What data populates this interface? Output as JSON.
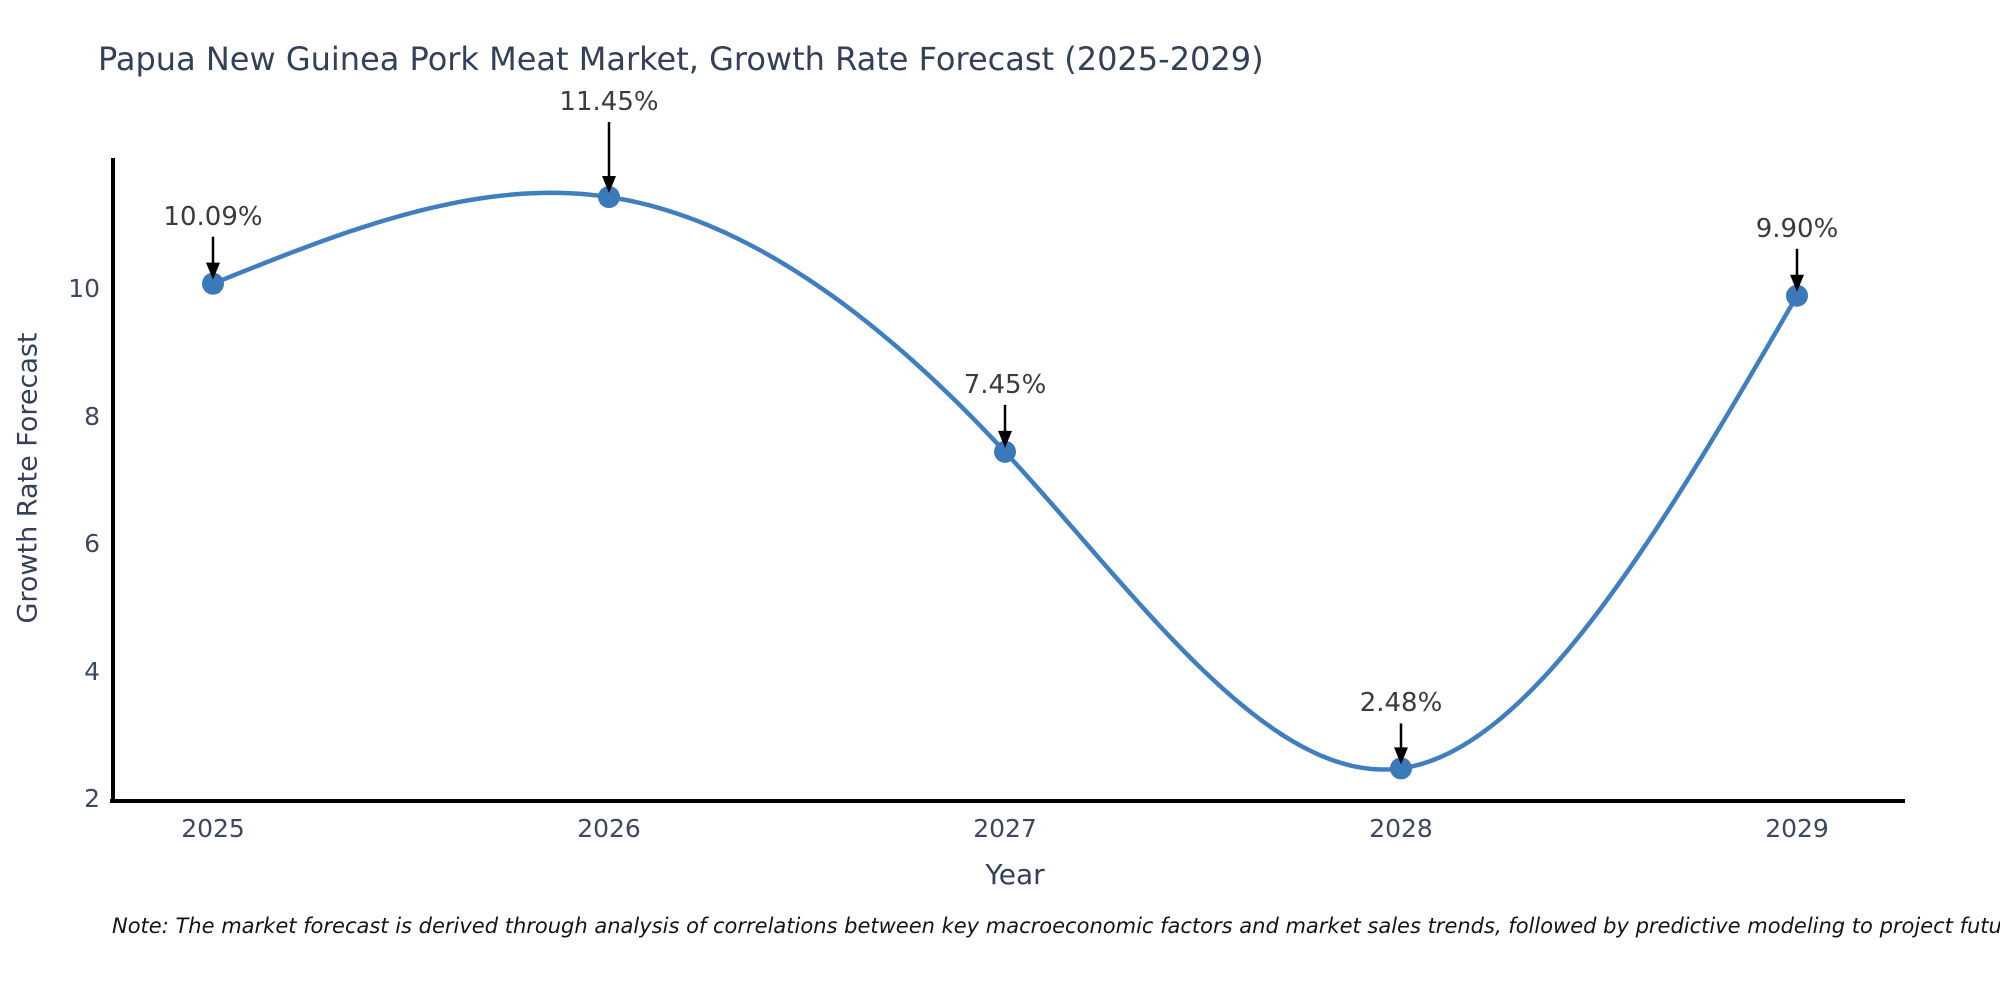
{
  "title": "Papua New Guinea Pork Meat Market, Growth Rate Forecast (2025-2029)",
  "note": "Note: The market forecast is derived through analysis of correlations between key macroeconomic factors and market sales trends, followed by predictive modeling to project future sales",
  "chart_data": {
    "type": "line",
    "title": "Papua New Guinea Pork Meat Market, Growth Rate Forecast (2025-2029)",
    "xlabel": "Year",
    "ylabel": "Growth Rate Forecast",
    "x": [
      2025,
      2026,
      2027,
      2028,
      2029
    ],
    "series": [
      {
        "name": "Growth Rate Forecast",
        "values": [
          10.09,
          11.45,
          7.45,
          2.48,
          9.9
        ]
      }
    ],
    "point_labels": [
      "10.09%",
      "11.45%",
      "7.45%",
      "2.48%",
      "9.90%"
    ],
    "xtick_labels": [
      "2025",
      "2026",
      "2027",
      "2028",
      "2029"
    ],
    "yticks": [
      2,
      4,
      6,
      8,
      10
    ],
    "ylim": [
      2,
      12.1
    ],
    "xlim": [
      2024.75,
      2029.27
    ],
    "grid": false,
    "legend": "none",
    "curve_style": "smooth-spline",
    "marker_style": "filled-circle",
    "annotation_style": "black-down-arrow",
    "colors": {
      "line": "#3f7fbf",
      "marker": "#3a7ab9",
      "arrow": "#000000",
      "axis_spine": "#000000",
      "axis_text": "#33405a",
      "annotation_text": "#3b3b3b",
      "note_text": "#141414",
      "background": "#ffffff"
    }
  }
}
